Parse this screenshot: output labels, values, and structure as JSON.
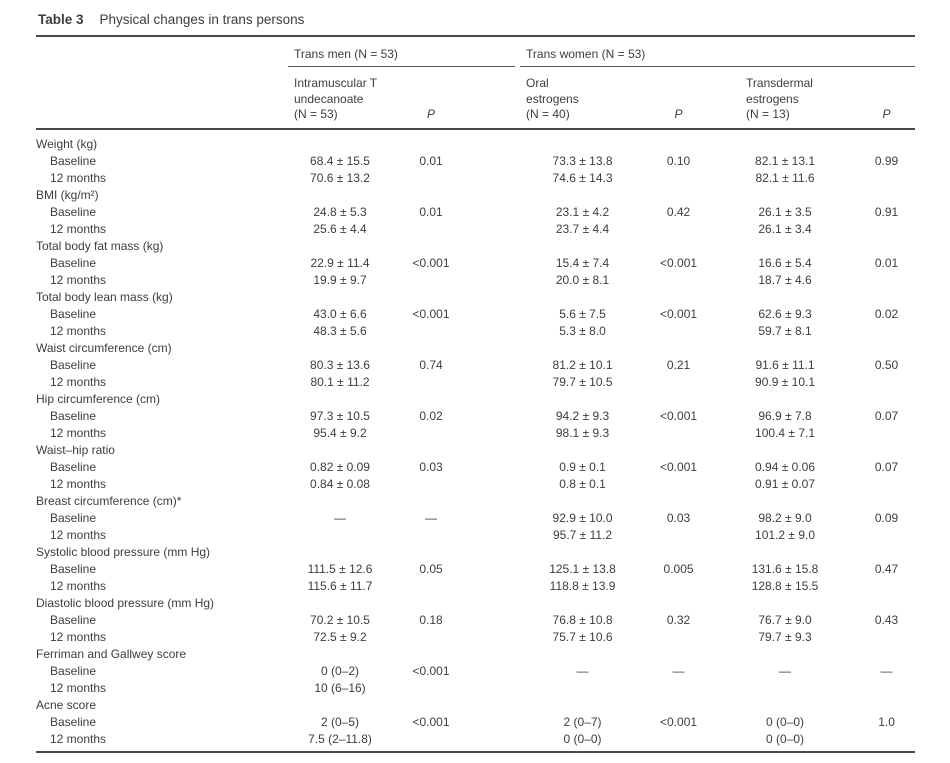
{
  "title": {
    "label": "Table 3",
    "caption": "Physical changes in trans persons"
  },
  "table": {
    "groups": [
      {
        "label": "Trans men (N = 53)"
      },
      {
        "label": "Trans women (N = 53)"
      }
    ],
    "columns": [
      {
        "lines": [
          "Intramuscular T",
          "undecanoate",
          "(N = 53)"
        ]
      },
      {
        "label": "P"
      },
      {
        "lines": [
          "Oral",
          "estrogens",
          "(N = 40)"
        ]
      },
      {
        "label": "P"
      },
      {
        "lines": [
          "Transdermal",
          "estrogens",
          "(N = 13)"
        ]
      },
      {
        "label": "P"
      }
    ],
    "rows": [
      {
        "category": "Weight (kg)",
        "sub": [
          {
            "label": "Baseline",
            "cells": [
              "68.4 ± 15.5",
              "0.01",
              "73.3 ± 13.8",
              "0.10",
              "82.1 ± 13.1",
              "0.99"
            ]
          },
          {
            "label": "12 months",
            "cells": [
              "70.6 ± 13.2",
              "",
              "74.6 ± 14.3",
              "",
              "82.1 ± 11.6",
              ""
            ]
          }
        ]
      },
      {
        "category": "BMI (kg/m²)",
        "sub": [
          {
            "label": "Baseline",
            "cells": [
              "24.8 ± 5.3",
              "0.01",
              "23.1 ± 4.2",
              "0.42",
              "26.1 ± 3.5",
              "0.91"
            ]
          },
          {
            "label": "12 months",
            "cells": [
              "25.6 ± 4.4",
              "",
              "23.7 ± 4.4",
              "",
              "26.1 ± 3.4",
              ""
            ]
          }
        ]
      },
      {
        "category": "Total body fat mass (kg)",
        "sub": [
          {
            "label": "Baseline",
            "cells": [
              "22.9 ± 11.4",
              "<0.001",
              "15.4 ± 7.4",
              "<0.001",
              "16.6 ± 5.4",
              "0.01"
            ]
          },
          {
            "label": "12 months",
            "cells": [
              "19.9 ± 9.7",
              "",
              "20.0 ± 8.1",
              "",
              "18.7 ± 4.6",
              ""
            ]
          }
        ]
      },
      {
        "category": "Total body lean mass (kg)",
        "sub": [
          {
            "label": "Baseline",
            "cells": [
              "43.0 ± 6.6",
              "<0.001",
              "5.6 ± 7.5",
              "<0.001",
              "62.6 ± 9.3",
              "0.02"
            ]
          },
          {
            "label": "12 months",
            "cells": [
              "48.3 ± 5.6",
              "",
              "5.3 ± 8.0",
              "",
              "59.7 ± 8.1",
              ""
            ]
          }
        ]
      },
      {
        "category": "Waist circumference (cm)",
        "sub": [
          {
            "label": "Baseline",
            "cells": [
              "80.3 ± 13.6",
              "0.74",
              "81.2 ± 10.1",
              "0.21",
              "91.6 ± 11.1",
              "0.50"
            ]
          },
          {
            "label": "12 months",
            "cells": [
              "80.1 ± 11.2",
              "",
              "79.7 ± 10.5",
              "",
              "90.9 ± 10.1",
              ""
            ]
          }
        ]
      },
      {
        "category": "Hip circumference (cm)",
        "sub": [
          {
            "label": "Baseline",
            "cells": [
              "97.3 ± 10.5",
              "0.02",
              "94.2 ± 9.3",
              "<0.001",
              "96.9 ± 7.8",
              "0.07"
            ]
          },
          {
            "label": "12 months",
            "cells": [
              "95.4 ± 9.2",
              "",
              "98.1 ± 9.3",
              "",
              "100.4 ± 7.1",
              ""
            ]
          }
        ]
      },
      {
        "category": "Waist–hip ratio",
        "sub": [
          {
            "label": "Baseline",
            "cells": [
              "0.82 ± 0.09",
              "0.03",
              "0.9 ± 0.1",
              "<0.001",
              "0.94 ± 0.06",
              "0.07"
            ]
          },
          {
            "label": "12 months",
            "cells": [
              "0.84 ± 0.08",
              "",
              "0.8 ± 0.1",
              "",
              "0.91 ± 0.07",
              ""
            ]
          }
        ]
      },
      {
        "category": "Breast circumference (cm)*",
        "sub": [
          {
            "label": "Baseline",
            "cells": [
              "—",
              "—",
              "92.9 ± 10.0",
              "0.03",
              "98.2 ± 9.0",
              "0.09"
            ]
          },
          {
            "label": "12 months",
            "cells": [
              "",
              "",
              "95.7 ± 11.2",
              "",
              "101.2 ± 9.0",
              ""
            ]
          }
        ]
      },
      {
        "category": "Systolic blood pressure (mm Hg)",
        "sub": [
          {
            "label": "Baseline",
            "cells": [
              "111.5 ± 12.6",
              "0.05",
              "125.1 ± 13.8",
              "0.005",
              "131.6 ± 15.8",
              "0.47"
            ]
          },
          {
            "label": "12 months",
            "cells": [
              "115.6 ± 11.7",
              "",
              "118.8 ± 13.9",
              "",
              "128.8 ± 15.5",
              ""
            ]
          }
        ]
      },
      {
        "category": "Diastolic blood pressure (mm Hg)",
        "sub": [
          {
            "label": "Baseline",
            "cells": [
              "70.2 ± 10.5",
              "0.18",
              "76.8 ± 10.8",
              "0.32",
              "76.7 ± 9.0",
              "0.43"
            ]
          },
          {
            "label": "12 months",
            "cells": [
              "72.5 ± 9.2",
              "",
              "75.7 ± 10.6",
              "",
              "79.7 ± 9.3",
              ""
            ]
          }
        ]
      },
      {
        "category": "Ferriman and Gallwey score",
        "sub": [
          {
            "label": "Baseline",
            "cells": [
              "0 (0–2)",
              "<0.001",
              "—",
              "—",
              "—",
              "—"
            ]
          },
          {
            "label": "12 months",
            "cells": [
              "10 (6–16)",
              "",
              "",
              "",
              "",
              ""
            ]
          }
        ]
      },
      {
        "category": "Acne score",
        "sub": [
          {
            "label": "Baseline",
            "cells": [
              "2 (0–5)",
              "<0.001",
              "2 (0–7)",
              "<0.001",
              "0 (0–0)",
              "1.0"
            ]
          },
          {
            "label": "12 months",
            "cells": [
              "7.5 (2–11.8)",
              "",
              "0 (0–0)",
              "",
              "0 (0–0)",
              ""
            ]
          }
        ]
      }
    ]
  }
}
